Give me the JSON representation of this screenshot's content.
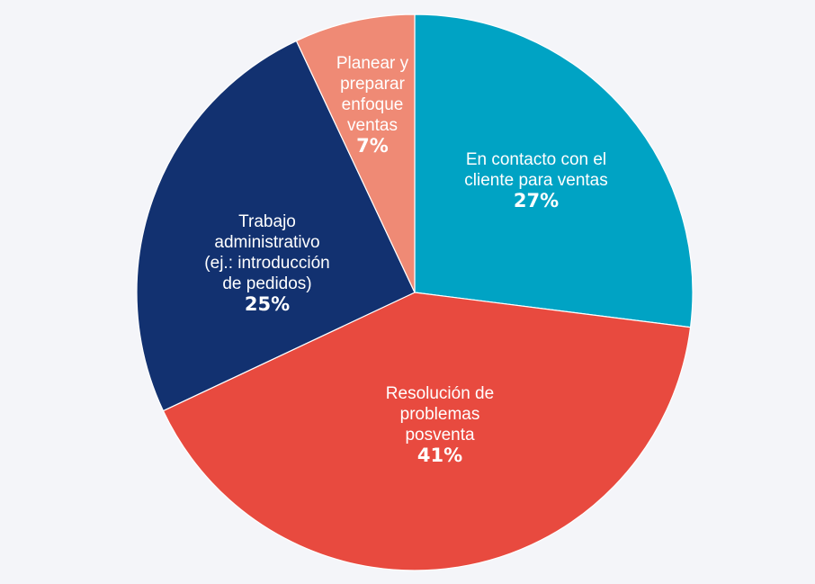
{
  "chart_data": {
    "type": "pie",
    "start": "top",
    "direction": "clockwise",
    "slices": [
      {
        "label_lines": [
          "En contacto con el",
          "cliente para ventas"
        ],
        "value": 27,
        "value_label": "27%",
        "color": "#00A3C4"
      },
      {
        "label_lines": [
          "Resolución de",
          "problemas",
          "posventa"
        ],
        "value": 41,
        "value_label": "41%",
        "color": "#E84A3F"
      },
      {
        "label_lines": [
          "Trabajo",
          "administrativo",
          "(ej.: introducción",
          "de pedidos)"
        ],
        "value": 25,
        "value_label": "25%",
        "color": "#123170"
      },
      {
        "label_lines": [
          "Planear y",
          "preparar",
          "enfoque",
          "ventas"
        ],
        "value": 7,
        "value_label": "7%",
        "color": "#EF8A75"
      }
    ],
    "background": "#F4F5F9"
  }
}
